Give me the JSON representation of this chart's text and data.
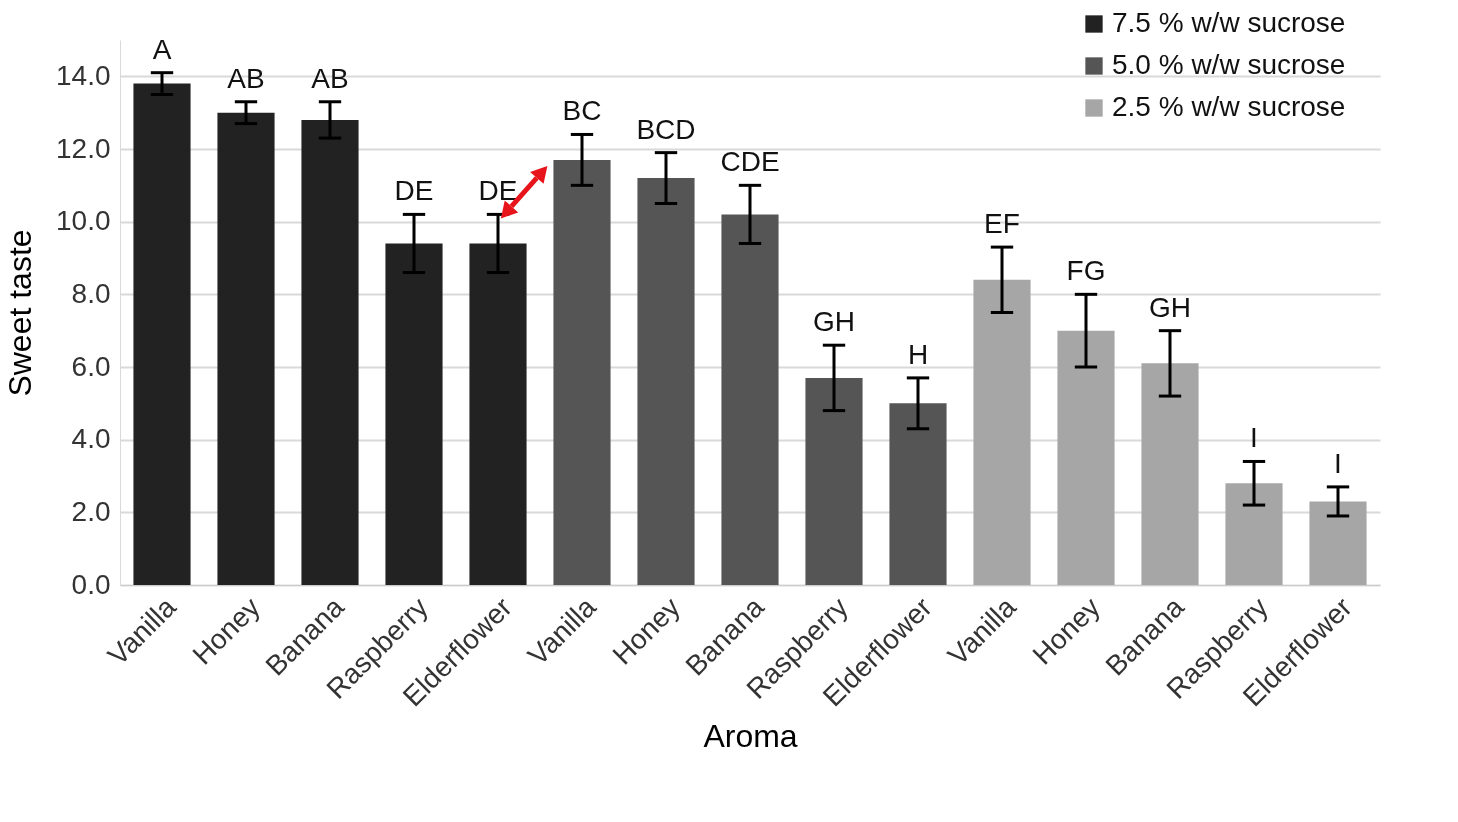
{
  "chart_data": {
    "type": "bar",
    "xlabel": "Aroma",
    "ylabel": "Sweet taste",
    "categories": [
      "Vanilla",
      "Honey",
      "Banana",
      "Raspberry",
      "Elderflower",
      "Vanilla",
      "Honey",
      "Banana",
      "Raspberry",
      "Elderflower",
      "Vanilla",
      "Honey",
      "Banana",
      "Raspberry",
      "Elderflower"
    ],
    "series": [
      {
        "name": "7.5 % w/w sucrose",
        "color": "#222222",
        "values": [
          13.8,
          13.0,
          12.8,
          9.4,
          9.4,
          null,
          null,
          null,
          null,
          null,
          null,
          null,
          null,
          null,
          null
        ],
        "errors": [
          0.3,
          0.3,
          0.5,
          0.8,
          0.8,
          null,
          null,
          null,
          null,
          null,
          null,
          null,
          null,
          null,
          null
        ],
        "value_labels": [
          "A",
          "AB",
          "AB",
          "DE",
          "DE",
          null,
          null,
          null,
          null,
          null,
          null,
          null,
          null,
          null,
          null
        ]
      },
      {
        "name": "5.0 % w/w sucrose",
        "color": "#555555",
        "values": [
          null,
          null,
          null,
          null,
          null,
          11.7,
          11.2,
          10.2,
          5.7,
          5.0,
          null,
          null,
          null,
          null,
          null
        ],
        "errors": [
          null,
          null,
          null,
          null,
          null,
          0.7,
          0.7,
          0.8,
          0.9,
          0.7,
          null,
          null,
          null,
          null,
          null
        ],
        "value_labels": [
          null,
          null,
          null,
          null,
          null,
          "BC",
          "BCD",
          "CDE",
          "GH",
          "H",
          null,
          null,
          null,
          null,
          null
        ]
      },
      {
        "name": "2.5 % w/w sucrose",
        "color": "#a6a6a6",
        "values": [
          null,
          null,
          null,
          null,
          null,
          null,
          null,
          null,
          null,
          null,
          8.4,
          7.0,
          6.1,
          2.8,
          2.3
        ],
        "errors": [
          null,
          null,
          null,
          null,
          null,
          null,
          null,
          null,
          null,
          null,
          0.9,
          1.0,
          0.9,
          0.6,
          0.4
        ],
        "value_labels": [
          null,
          null,
          null,
          null,
          null,
          null,
          null,
          null,
          null,
          null,
          "EF",
          "FG",
          "GH",
          "I",
          "I"
        ]
      }
    ],
    "ylim": [
      0,
      15
    ],
    "yticks": [
      {
        "value": 0,
        "label": "0.0"
      },
      {
        "value": 2,
        "label": "2.0"
      },
      {
        "value": 4,
        "label": "4.0"
      },
      {
        "value": 6,
        "label": "6.0"
      },
      {
        "value": 8,
        "label": "8.0"
      },
      {
        "value": 10,
        "label": "10.0"
      },
      {
        "value": 12,
        "label": "12.0"
      },
      {
        "value": 14,
        "label": "14.0"
      }
    ],
    "grid": "y",
    "legend": "top right"
  }
}
